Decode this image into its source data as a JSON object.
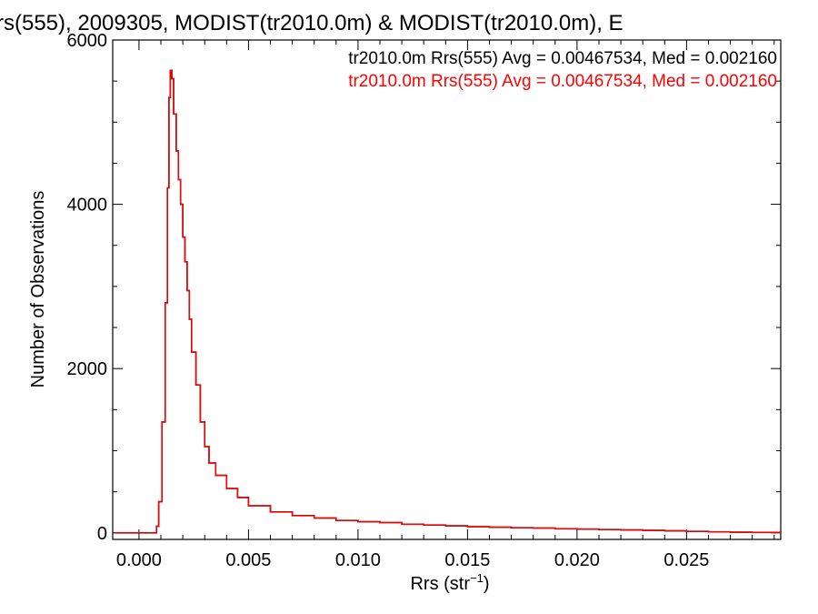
{
  "chart_data": {
    "type": "line",
    "title": "rs(555), 2009305, MODIST(tr2010.0m) & MODIST(tr2010.0m), E",
    "xlabel": "Rrs (str",
    "xlabel_sup": "−1",
    "xlabel_close": ")",
    "ylabel": "Number of Observations",
    "xlim": [
      -0.0012,
      0.0293
    ],
    "ylim": [
      -80,
      6000
    ],
    "xticks": [
      0.0,
      0.005,
      0.01,
      0.015,
      0.02,
      0.025
    ],
    "xtick_labels": [
      "0.000",
      "0.005",
      "0.010",
      "0.015",
      "0.020",
      "0.025"
    ],
    "yticks": [
      0,
      2000,
      4000,
      6000
    ],
    "ytick_labels": [
      "0",
      "2000",
      "4000",
      "6000"
    ],
    "grid": false,
    "legend_placement": "top-right",
    "series": [
      {
        "name": "tr2010.0m Rrs(555) Avg = 0.00467534, Med = 0.002160",
        "color": "#000000",
        "points": [
          [
            -0.0011,
            0
          ],
          [
            0.0006,
            0
          ],
          [
            0.0008,
            80
          ],
          [
            0.0009,
            380
          ],
          [
            0.00105,
            1350
          ],
          [
            0.0012,
            2800
          ],
          [
            0.0013,
            4200
          ],
          [
            0.00137,
            5300
          ],
          [
            0.00143,
            5630
          ],
          [
            0.0015,
            5530
          ],
          [
            0.00158,
            5100
          ],
          [
            0.0017,
            4650
          ],
          [
            0.0018,
            4300
          ],
          [
            0.0019,
            4000
          ],
          [
            0.002,
            3600
          ],
          [
            0.0021,
            3300
          ],
          [
            0.0022,
            2950
          ],
          [
            0.0023,
            2600
          ],
          [
            0.0024,
            2200
          ],
          [
            0.0026,
            1800
          ],
          [
            0.0028,
            1350
          ],
          [
            0.003,
            1050
          ],
          [
            0.0032,
            850
          ],
          [
            0.0035,
            700
          ],
          [
            0.004,
            540
          ],
          [
            0.0045,
            430
          ],
          [
            0.005,
            330
          ],
          [
            0.006,
            255
          ],
          [
            0.007,
            210
          ],
          [
            0.008,
            180
          ],
          [
            0.009,
            150
          ],
          [
            0.01,
            135
          ],
          [
            0.011,
            125
          ],
          [
            0.012,
            105
          ],
          [
            0.013,
            95
          ],
          [
            0.014,
            85
          ],
          [
            0.015,
            75
          ],
          [
            0.016,
            68
          ],
          [
            0.017,
            62
          ],
          [
            0.018,
            58
          ],
          [
            0.019,
            50
          ],
          [
            0.02,
            45
          ],
          [
            0.021,
            40
          ],
          [
            0.022,
            35
          ],
          [
            0.023,
            30
          ],
          [
            0.024,
            24
          ],
          [
            0.025,
            18
          ],
          [
            0.026,
            12
          ],
          [
            0.027,
            8
          ],
          [
            0.028,
            5
          ],
          [
            0.0293,
            3
          ]
        ]
      },
      {
        "name": "tr2010.0m Rrs(555) Avg = 0.00467534, Med = 0.002160",
        "color": "#ff0000",
        "points": [
          [
            -0.0011,
            0
          ],
          [
            0.0006,
            0
          ],
          [
            0.0008,
            80
          ],
          [
            0.0009,
            380
          ],
          [
            0.00105,
            1350
          ],
          [
            0.0012,
            2800
          ],
          [
            0.0013,
            4200
          ],
          [
            0.00137,
            5300
          ],
          [
            0.00143,
            5630
          ],
          [
            0.0015,
            5530
          ],
          [
            0.00158,
            5100
          ],
          [
            0.0017,
            4650
          ],
          [
            0.0018,
            4300
          ],
          [
            0.0019,
            4000
          ],
          [
            0.002,
            3600
          ],
          [
            0.0021,
            3300
          ],
          [
            0.0022,
            2950
          ],
          [
            0.0023,
            2600
          ],
          [
            0.0024,
            2200
          ],
          [
            0.0026,
            1800
          ],
          [
            0.0028,
            1350
          ],
          [
            0.003,
            1050
          ],
          [
            0.0032,
            850
          ],
          [
            0.0035,
            700
          ],
          [
            0.004,
            540
          ],
          [
            0.0045,
            430
          ],
          [
            0.005,
            330
          ],
          [
            0.006,
            255
          ],
          [
            0.007,
            210
          ],
          [
            0.008,
            180
          ],
          [
            0.009,
            150
          ],
          [
            0.01,
            135
          ],
          [
            0.011,
            125
          ],
          [
            0.012,
            105
          ],
          [
            0.013,
            95
          ],
          [
            0.014,
            85
          ],
          [
            0.015,
            75
          ],
          [
            0.016,
            68
          ],
          [
            0.017,
            62
          ],
          [
            0.018,
            58
          ],
          [
            0.019,
            50
          ],
          [
            0.02,
            45
          ],
          [
            0.021,
            40
          ],
          [
            0.022,
            35
          ],
          [
            0.023,
            30
          ],
          [
            0.024,
            24
          ],
          [
            0.025,
            18
          ],
          [
            0.026,
            12
          ],
          [
            0.027,
            8
          ],
          [
            0.028,
            5
          ],
          [
            0.0293,
            3
          ]
        ]
      }
    ]
  }
}
